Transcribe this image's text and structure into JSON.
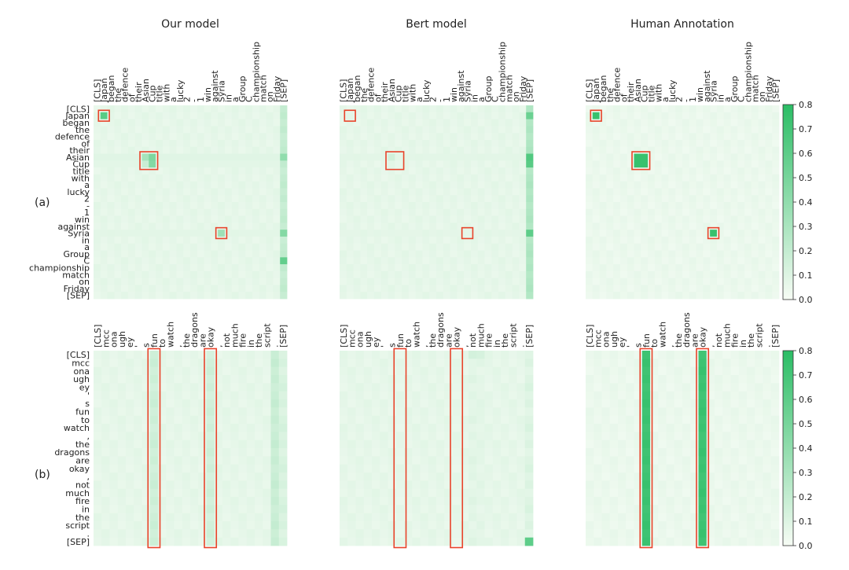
{
  "chart_data": {
    "type": "heatmap",
    "column_titles": [
      "Our model",
      "Bert model",
      "Human Annotation"
    ],
    "row_labels": [
      "(a)",
      "(b)"
    ],
    "colorbar": {
      "range": [
        0.0,
        0.8
      ],
      "ticks": [
        "0.0",
        "0.1",
        "0.2",
        "0.3",
        "0.4",
        "0.5",
        "0.6",
        "0.7",
        "0.8"
      ],
      "color_low": "#f7fcf5",
      "color_high": "#2bbd65"
    },
    "colors": {
      "highlight_box": "#e8432a",
      "text": "#222222"
    },
    "rows": [
      {
        "tokens": [
          "[CLS]",
          "Japan",
          "began",
          "the",
          "defence",
          "of",
          "their",
          "Asian",
          "Cup",
          "title",
          "with",
          "a",
          "lucky",
          "2",
          "-",
          "1",
          "win",
          "against",
          "Syria",
          "in",
          "a",
          "Group",
          "C",
          "championship",
          "match",
          "on",
          "Friday",
          "[SEP]"
        ],
        "highlights": [
          {
            "rows": [
              1,
              1
            ],
            "cols": [
              1,
              1
            ]
          },
          {
            "rows": [
              7,
              8
            ],
            "cols": [
              7,
              8
            ]
          },
          {
            "rows": [
              18,
              18
            ],
            "cols": [
              18,
              18
            ]
          }
        ],
        "panels": [
          {
            "model": "Our model",
            "background": 0.05,
            "column_weights": {
              "27": 0.22
            },
            "row_weights": {
              "7": 0.09,
              "8": 0.08,
              "18": 0.08
            },
            "cells": [
              {
                "r": 1,
                "c": 1,
                "v": 0.62
              },
              {
                "r": 7,
                "c": 7,
                "v": 0.32
              },
              {
                "r": 7,
                "c": 8,
                "v": 0.48
              },
              {
                "r": 8,
                "c": 8,
                "v": 0.45
              },
              {
                "r": 8,
                "c": 7,
                "v": 0.18
              },
              {
                "r": 18,
                "c": 18,
                "v": 0.35
              },
              {
                "r": 18,
                "c": 27,
                "v": 0.45
              },
              {
                "r": 22,
                "c": 27,
                "v": 0.58
              },
              {
                "r": 7,
                "c": 27,
                "v": 0.4
              }
            ]
          },
          {
            "model": "Bert model",
            "background": 0.05,
            "column_weights": {
              "27": 0.3
            },
            "row_weights": {
              "7": 0.08,
              "18": 0.07
            },
            "cells": [
              {
                "r": 1,
                "c": 27,
                "v": 0.55
              },
              {
                "r": 7,
                "c": 27,
                "v": 0.65
              },
              {
                "r": 8,
                "c": 27,
                "v": 0.62
              },
              {
                "r": 18,
                "c": 27,
                "v": 0.6
              },
              {
                "r": 7,
                "c": 7,
                "v": 0.15
              }
            ]
          },
          {
            "model": "Human Annotation",
            "background": 0.03,
            "column_weights": {},
            "row_weights": {},
            "cells": [
              {
                "r": 1,
                "c": 1,
                "v": 0.75
              },
              {
                "r": 7,
                "c": 7,
                "v": 0.75
              },
              {
                "r": 7,
                "c": 8,
                "v": 0.75
              },
              {
                "r": 8,
                "c": 7,
                "v": 0.75
              },
              {
                "r": 8,
                "c": 8,
                "v": 0.75
              },
              {
                "r": 18,
                "c": 18,
                "v": 0.75
              }
            ]
          }
        ]
      },
      {
        "tokens": [
          "[CLS]",
          "mcc",
          "ona",
          "ugh",
          "ey",
          "'",
          "s",
          "fun",
          "to",
          "watch",
          ",",
          "the",
          "dragons",
          "are",
          "okay",
          ",",
          "not",
          "much",
          "fire",
          "in",
          "the",
          "script",
          ".",
          "[SEP]"
        ],
        "highlights": [
          {
            "rows": [
              0,
              23
            ],
            "cols": [
              7,
              7
            ]
          },
          {
            "rows": [
              0,
              23
            ],
            "cols": [
              14,
              14
            ]
          }
        ],
        "panels": [
          {
            "model": "Our model",
            "background": 0.05,
            "column_weights": {
              "7": 0.18,
              "14": 0.17,
              "22": 0.2,
              "23": 0.14
            },
            "row_weights": {},
            "cells": []
          },
          {
            "model": "Bert model",
            "background": 0.05,
            "column_weights": {
              "16": 0.1,
              "17": 0.09,
              "23": 0.12
            },
            "row_weights": {},
            "cells": [
              {
                "r": 23,
                "c": 23,
                "v": 0.6
              },
              {
                "r": 0,
                "c": 16,
                "v": 0.14
              },
              {
                "r": 0,
                "c": 17,
                "v": 0.13
              }
            ]
          },
          {
            "model": "Human Annotation",
            "background": 0.03,
            "column_weights": {
              "7": 0.75,
              "14": 0.75
            },
            "row_weights": {},
            "cells": []
          }
        ]
      }
    ]
  }
}
